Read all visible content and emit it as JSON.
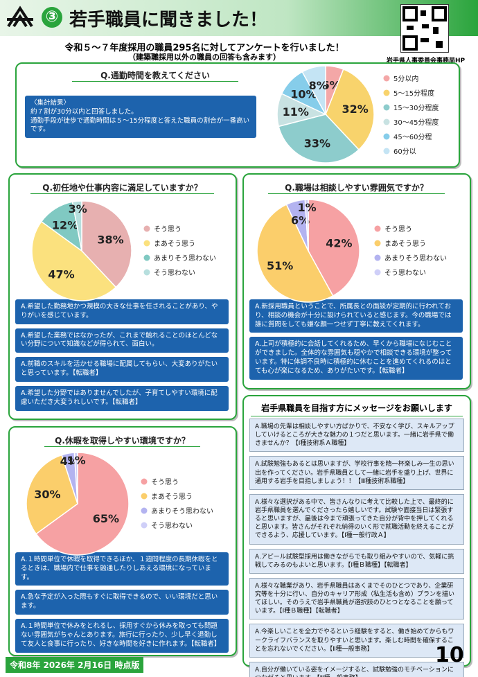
{
  "header": {
    "number": "③",
    "title": "若手職員に聞きました！"
  },
  "intro": {
    "line1": "令和５〜７年度採用の職員295名に対してアンケートを行いました！",
    "line2": "（建築職採用以外の職員の回答も含みます）"
  },
  "qr_caption": "岩手県人事委員会事務局HP",
  "commute_result": {
    "heading": "〈集計結果〉",
    "lines": [
      "約７割が30分以内と回答しました。",
      "通勤手段が徒歩で通勤時間は５〜15分程度と答えた職員の割合が一番高いです。"
    ]
  },
  "chart_data": [
    {
      "type": "pie",
      "title": "Q.通勤時間を教えてください",
      "categories": [
        "5分以内",
        "5〜15分程度",
        "15〜30分程度",
        "30〜45分程度",
        "45〜60分程",
        "60分以"
      ],
      "values": [
        6,
        32,
        33,
        11,
        10,
        8
      ],
      "value_labels": [
        "6%",
        "32%",
        "33%",
        "11%",
        "10%",
        "8%"
      ],
      "colors": [
        "#f4a7a7",
        "#f8d36c",
        "#8dcccc",
        "#c8e2e2",
        "#86cdea",
        "#c4e4f4"
      ]
    },
    {
      "type": "pie",
      "title": "Q.初任地や仕事内容に満足していますか？",
      "categories": [
        "そう思う",
        "まあそう思う",
        "あまりそう思わない",
        "そう思わない"
      ],
      "values": [
        38,
        47,
        12,
        3
      ],
      "value_labels": [
        "38%",
        "47%",
        "12%",
        "3%"
      ],
      "colors": [
        "#e7b0b0",
        "#fbe17e",
        "#80c9c2",
        "#b7dfde"
      ]
    },
    {
      "type": "pie",
      "title": "Q.職場は相談しやすい雰囲気ですか？",
      "categories": [
        "そう思う",
        "まあそう思う",
        "あまりそう思わない",
        "そう思わない"
      ],
      "values": [
        42,
        51,
        6,
        1
      ],
      "value_labels": [
        "42%",
        "51%",
        "6%",
        "1%"
      ],
      "colors": [
        "#f6a1a3",
        "#fbce6b",
        "#b3b3f0",
        "#cfcff8"
      ]
    },
    {
      "type": "pie",
      "title": "Q.休暇を取得しやすい環境ですか？",
      "categories": [
        "そう思う",
        "まあそう思う",
        "あまりそう思わない",
        "そう思わない"
      ],
      "values": [
        65,
        30,
        4,
        1
      ],
      "value_labels": [
        "65%",
        "30%",
        "4%",
        "1%"
      ],
      "colors": [
        "#f6a1a3",
        "#fbce6b",
        "#b3b3f0",
        "#cfcff8"
      ]
    }
  ],
  "answers": [
    [
      "A.希望した勤務地かつ規模の大きな仕事を任されることがあり、やりがいを感じています。",
      "A.希望した業務ではなかったが、これまで触れることのほとんどない分野について知識などが得られて、面白い。",
      "A.前職のスキルを活かせる職場に配属してもらい、大変ありがたいと思っています。【転職者】",
      "A.希望した分野ではありませんでしたが、子育てしやすい環境に配慮いただき大変うれしいです。【転職者】"
    ],
    [
      "A.新採用職員ということで、所属長との面談が定期的に行われており、相談の機会が十分に設けられていると感じます。今の職場では誰に質問をしても嫌な顔一つせず丁寧に教えてくれます。",
      "A.上司が積極的に会話してくれるため、早くから職場になじむことができました。全体的な雰囲気も穏やかで相談できる環境が整っています。特に体調不良時に積極的に休むことを進めてくれるのはとても心が楽になるため、ありがたいです。【転職者】"
    ],
    [
      "A.１時間単位で休暇を取得できるほか、１週間程度の長期休暇をとるときは、職場内で仕事を融通したりしあえる環境になっています。",
      "A.急な予定が入った際もすぐに取得できるので、いい環境だと思います。",
      "A.１時間単位で休みをとれるし、採用すぐから休みを取っても問題ない雰囲気がちゃんとあります。旅行に行ったり、少し早く退勤して友人と食事に行ったり、好きな時間を好きに作れます。【転職者】"
    ]
  ],
  "message": {
    "title": "岩手県職員を目指す方にメッセージをお願いします",
    "answers": [
      "A.職場の先輩は相談しやすい方ばかりで、不安なく学び、スキルアップしていけるところが大きな魅力の１つだと思います。一緒に岩手県で働きませんか？【Ⅰ種技術系Ａ職種】",
      "A.試験勉強もあるとは思いますが、学校行事を精一杯楽しみ一生の思い出を作ってください。岩手県職員として一緒に岩手を盛り上げ、世界に通用する岩手を目指しましょう！！【Ⅲ種技術系職種】",
      "A.様々な選択がある中で、皆さんなりに考えて比較した上で、最終的に岩手県職員を選んでくださったら嬉しいです。試験や面接当日は緊張すると思いますが、最後は今まで頑張ってきた自分が背中を押してくれると思います。皆さんがそれぞれ納得のいく形で就職活動を終えることができるよう、応援しています。【Ⅰ種一般行政Ａ】",
      "A.アピール試験型採用は働きながらでも取り組みやすいので、気軽に挑戦してみるのもよいと思います。【Ⅰ種Ｂ職種】【転職者】",
      "A.様々な職業があり、岩手県職員はあくまでそのひとつであり、企業研究等を十分に行い、自分のキャリア形成（私生活も含め）プランを描いてほしい。そのうえで岩手県職員が選択肢のひとつとなることを願っています。【Ⅰ種Ｂ職種】【転職者】",
      "A.今楽しいことを全力でやるという経験をすると、働き始めてからもワークライフバランスを取りやすいと思います。楽しむ時間を確保することを忘れないでください。【Ⅱ種一般事務】",
      "A.自分が働いている姿をイメージすると、試験勉強のモチベーションにつながると思います。【Ⅲ種一般事務】"
    ]
  },
  "footer": {
    "date": "令和8年 2026年 2月16日 時点版",
    "page": "10"
  }
}
